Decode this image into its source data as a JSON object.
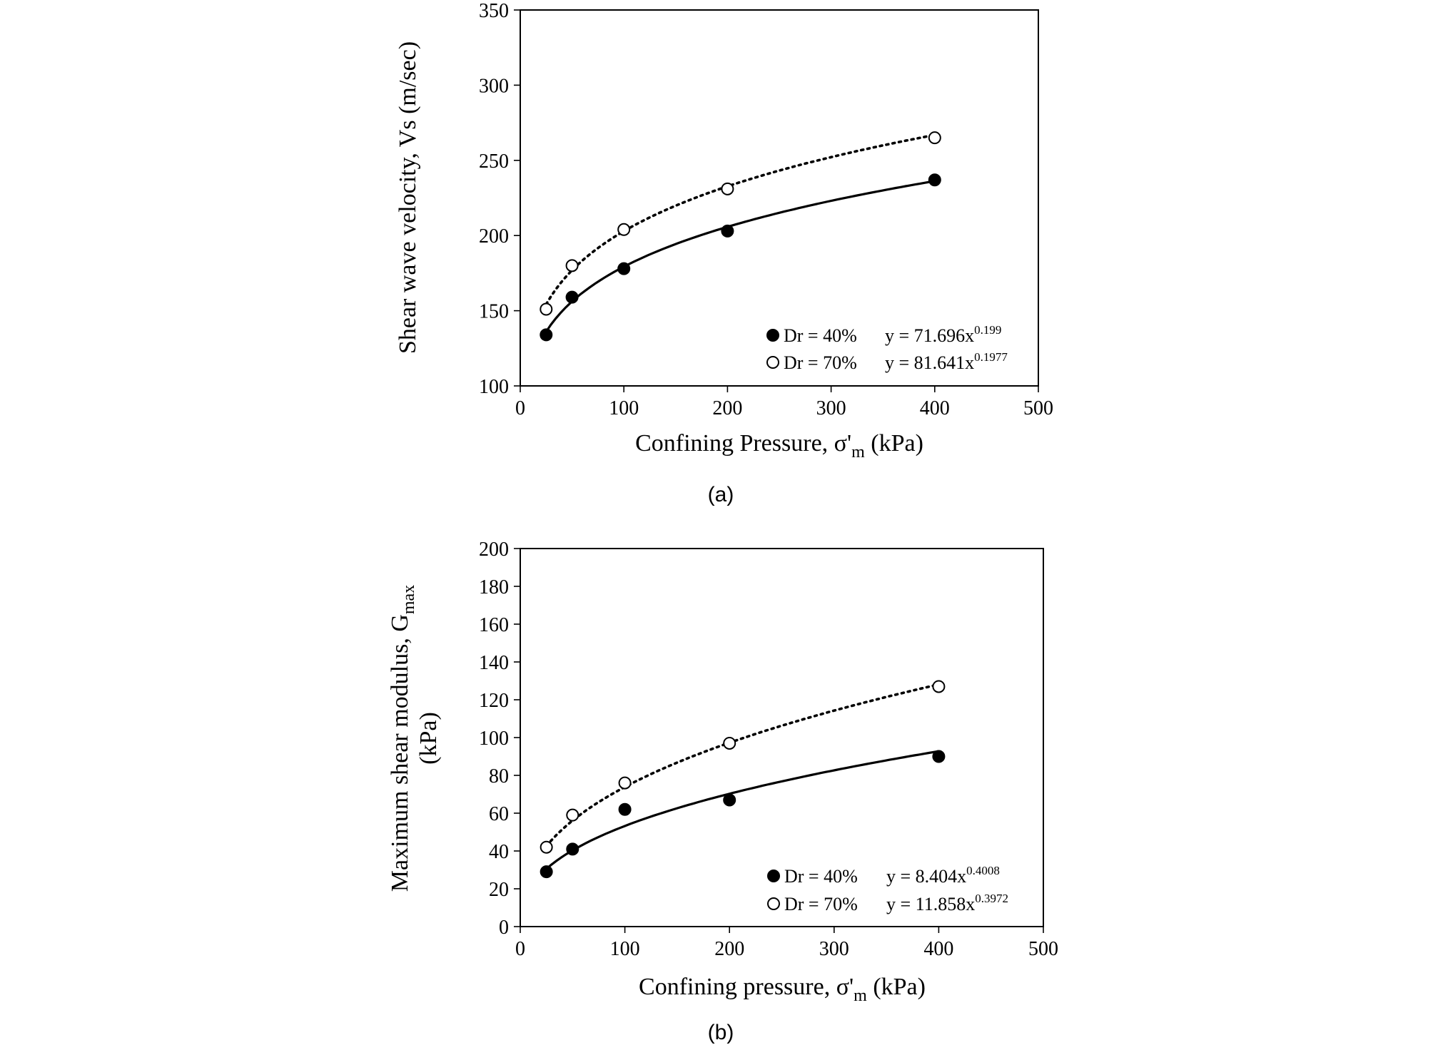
{
  "chart_data": [
    {
      "type": "scatter",
      "caption": "(a)",
      "ylabel": "Shear wave velocity, Vs (m/sec)",
      "xlabel": {
        "main": "Confining Pressure, σ'",
        "sub": "m",
        "tail": " (kPa)"
      },
      "xlim": [
        0,
        500
      ],
      "ylim": [
        100,
        350
      ],
      "xticks": [
        0,
        100,
        200,
        300,
        400,
        500
      ],
      "yticks": [
        100,
        150,
        200,
        250,
        300,
        350
      ],
      "grid": false,
      "legend_position": "bottom-right",
      "series": [
        {
          "name": "Dr = 40%",
          "marker": "filled-circle",
          "fit_style": "solid",
          "equation": {
            "base": "y = 71.696x",
            "exp": "0.199"
          },
          "fit": {
            "a": 71.696,
            "b": 0.199
          },
          "x": [
            25,
            50,
            100,
            200,
            400
          ],
          "y": [
            134,
            159,
            178,
            203,
            237
          ]
        },
        {
          "name": "Dr = 70%",
          "marker": "open-circle",
          "fit_style": "dotted",
          "equation": {
            "base": "y = 81.641x",
            "exp": "0.1977"
          },
          "fit": {
            "a": 81.641,
            "b": 0.1977
          },
          "x": [
            25,
            50,
            100,
            200,
            400
          ],
          "y": [
            151,
            180,
            204,
            231,
            265
          ]
        }
      ]
    },
    {
      "type": "scatter",
      "caption": "(b)",
      "ylabel": {
        "line1": "Maximum shear modulus, G",
        "line1_sub": "max",
        "line2": "(kPa)"
      },
      "xlabel": {
        "main": "Confining pressure, σ'",
        "sub": "m",
        "tail": " (kPa)"
      },
      "xlim": [
        0,
        500
      ],
      "ylim": [
        0,
        200
      ],
      "xticks": [
        0,
        100,
        200,
        300,
        400,
        500
      ],
      "yticks": [
        0,
        20,
        40,
        60,
        80,
        100,
        120,
        140,
        160,
        180,
        200
      ],
      "grid": false,
      "legend_position": "bottom-right",
      "series": [
        {
          "name": "Dr = 40%",
          "marker": "filled-circle",
          "fit_style": "solid",
          "equation": {
            "base": "y = 8.404x",
            "exp": "0.4008"
          },
          "fit": {
            "a": 8.404,
            "b": 0.4008
          },
          "x": [
            25,
            50,
            100,
            200,
            400
          ],
          "y": [
            29,
            41,
            62,
            67,
            90
          ]
        },
        {
          "name": "Dr = 70%",
          "marker": "open-circle",
          "fit_style": "dotted",
          "equation": {
            "base": "y = 11.858x",
            "exp": "0.3972"
          },
          "fit": {
            "a": 11.858,
            "b": 0.3972
          },
          "x": [
            25,
            50,
            100,
            200,
            400
          ],
          "y": [
            42,
            59,
            76,
            97,
            127
          ]
        }
      ]
    }
  ]
}
